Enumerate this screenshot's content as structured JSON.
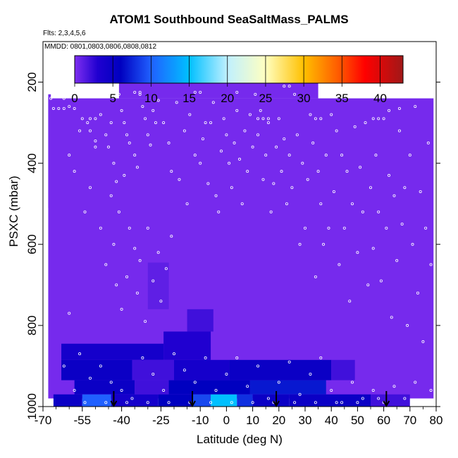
{
  "chart_data": {
    "type": "heatmap",
    "title": "ATOM1 Southbound SeaSaltMass_PALMS",
    "flights_label": "Flts: 2,3,4,5,6",
    "dates_label": "MMDD: 0801,0803,0806,0808,0812",
    "xlabel": "Latitude (deg N)",
    "ylabel": "PSXC (mbar)",
    "xlim": [
      -70,
      80
    ],
    "ylim": [
      1000,
      100
    ],
    "x_ticks": [
      -70,
      -55,
      -40,
      -25,
      -10,
      0,
      10,
      20,
      30,
      40,
      50,
      60,
      70,
      80
    ],
    "y_ticks": [
      200,
      400,
      600,
      800,
      1000
    ],
    "colorbar": {
      "range": [
        0,
        43
      ],
      "ticks": [
        0,
        5,
        10,
        15,
        20,
        25,
        30,
        35,
        40
      ],
      "colors": [
        {
          "v": 0,
          "c": "#7f2ff0"
        },
        {
          "v": 3,
          "c": "#2000d0"
        },
        {
          "v": 6,
          "c": "#0000c0"
        },
        {
          "v": 10,
          "c": "#2060ff"
        },
        {
          "v": 15,
          "c": "#00c0ff"
        },
        {
          "v": 20,
          "c": "#c0f0ff"
        },
        {
          "v": 25,
          "c": "#ffffc0"
        },
        {
          "v": 30,
          "c": "#ffc000"
        },
        {
          "v": 35,
          "c": "#ff5000"
        },
        {
          "v": 38,
          "c": "#ff0000"
        },
        {
          "v": 43,
          "c": "#a01818"
        }
      ]
    },
    "background_value": 0.3,
    "coverage": [
      {
        "x0": -68,
        "x1": 79,
        "p0": 240,
        "p1": 980
      },
      {
        "x0": -41,
        "x1": 35,
        "p0": 183,
        "p1": 240
      },
      {
        "x0": -68,
        "x1": -67,
        "p0": 230,
        "p1": 510
      }
    ],
    "regions": [
      {
        "x0": -63,
        "x1": -24,
        "p0": 845,
        "p1": 885,
        "v": 4
      },
      {
        "x0": -24,
        "x1": -6,
        "p0": 815,
        "p1": 885,
        "v": 3
      },
      {
        "x0": -63,
        "x1": -36,
        "p0": 885,
        "p1": 935,
        "v": 5
      },
      {
        "x0": -36,
        "x1": -20,
        "p0": 885,
        "p1": 935,
        "v": 2
      },
      {
        "x0": -20,
        "x1": 1,
        "p0": 885,
        "p1": 935,
        "v": 4
      },
      {
        "x0": 1,
        "x1": 40,
        "p0": 885,
        "p1": 935,
        "v": 5
      },
      {
        "x0": 40,
        "x1": 49,
        "p0": 885,
        "p1": 935,
        "v": 2
      },
      {
        "x0": -58,
        "x1": -35,
        "p0": 935,
        "p1": 970,
        "v": 5
      },
      {
        "x0": -35,
        "x1": -22,
        "p0": 935,
        "p1": 970,
        "v": 2
      },
      {
        "x0": -22,
        "x1": 9,
        "p0": 935,
        "p1": 970,
        "v": 6
      },
      {
        "x0": 9,
        "x1": 38,
        "p0": 935,
        "p1": 970,
        "v": 7
      },
      {
        "x0": -66,
        "x1": -55,
        "p0": 970,
        "p1": 1000,
        "v": 5
      },
      {
        "x0": -55,
        "x1": -44,
        "p0": 970,
        "p1": 1000,
        "v": 10
      },
      {
        "x0": -44,
        "x1": -26,
        "p0": 970,
        "p1": 1000,
        "v": 4
      },
      {
        "x0": -26,
        "x1": -13,
        "p0": 970,
        "p1": 1000,
        "v": 6
      },
      {
        "x0": -13,
        "x1": -6,
        "p0": 970,
        "p1": 1000,
        "v": 9
      },
      {
        "x0": -6,
        "x1": 4,
        "p0": 970,
        "p1": 1000,
        "v": 15
      },
      {
        "x0": 4,
        "x1": 10,
        "p0": 970,
        "p1": 1000,
        "v": 8
      },
      {
        "x0": 10,
        "x1": 24,
        "p0": 970,
        "p1": 1000,
        "v": 5
      },
      {
        "x0": 24,
        "x1": 55,
        "p0": 970,
        "p1": 1000,
        "v": 5
      },
      {
        "x0": 55,
        "x1": 70,
        "p0": 970,
        "p1": 1000,
        "v": 2
      },
      {
        "x0": -30,
        "x1": -22,
        "p0": 645,
        "p1": 760,
        "v": 1
      },
      {
        "x0": -15,
        "x1": -5,
        "p0": 760,
        "p1": 815,
        "v": 2
      }
    ],
    "arrows": [
      -43,
      -13,
      19,
      61
    ],
    "points": [
      [
        -67,
        240
      ],
      [
        -65,
        230
      ],
      [
        -62,
        240
      ],
      [
        -60,
        260
      ],
      [
        -58,
        265
      ],
      [
        -55,
        290
      ],
      [
        -53,
        300
      ],
      [
        -52,
        320
      ],
      [
        -50,
        345
      ],
      [
        -48,
        280
      ],
      [
        -46,
        330
      ],
      [
        -45,
        360
      ],
      [
        -44,
        300
      ],
      [
        -43,
        400
      ],
      [
        -42,
        445
      ],
      [
        -41,
        230
      ],
      [
        -40,
        270
      ],
      [
        -39,
        300
      ],
      [
        -38,
        330
      ],
      [
        -37,
        350
      ],
      [
        -35,
        380
      ],
      [
        -34,
        410
      ],
      [
        -33,
        230
      ],
      [
        -32,
        260
      ],
      [
        -31,
        290
      ],
      [
        -30,
        330
      ],
      [
        -29,
        355
      ],
      [
        -28,
        270
      ],
      [
        -27,
        300
      ],
      [
        -26,
        245
      ],
      [
        -24,
        300
      ],
      [
        -22,
        350
      ],
      [
        -21,
        420
      ],
      [
        -19,
        250
      ],
      [
        -18,
        440
      ],
      [
        -16,
        320
      ],
      [
        -15,
        500
      ],
      [
        -14,
        280
      ],
      [
        -12,
        380
      ],
      [
        -10,
        400
      ],
      [
        -9,
        340
      ],
      [
        -8,
        300
      ],
      [
        -7,
        450
      ],
      [
        -6,
        300
      ],
      [
        -5,
        250
      ],
      [
        -4,
        480
      ],
      [
        -3,
        520
      ],
      [
        -2,
        370
      ],
      [
        -1,
        290
      ],
      [
        0,
        330
      ],
      [
        1,
        400
      ],
      [
        2,
        460
      ],
      [
        3,
        350
      ],
      [
        4,
        270
      ],
      [
        5,
        390
      ],
      [
        6,
        500
      ],
      [
        7,
        320
      ],
      [
        8,
        420
      ],
      [
        9,
        280
      ],
      [
        10,
        360
      ],
      [
        11,
        230
      ],
      [
        12,
        330
      ],
      [
        13,
        270
      ],
      [
        14,
        440
      ],
      [
        15,
        380
      ],
      [
        16,
        300
      ],
      [
        17,
        520
      ],
      [
        18,
        450
      ],
      [
        19,
        360
      ],
      [
        20,
        290
      ],
      [
        21,
        420
      ],
      [
        22,
        340
      ],
      [
        23,
        500
      ],
      [
        24,
        380
      ],
      [
        25,
        460
      ],
      [
        26,
        230
      ],
      [
        27,
        330
      ],
      [
        28,
        600
      ],
      [
        29,
        400
      ],
      [
        30,
        560
      ],
      [
        31,
        440
      ],
      [
        32,
        280
      ],
      [
        33,
        350
      ],
      [
        34,
        680
      ],
      [
        35,
        420
      ],
      [
        36,
        500
      ],
      [
        37,
        600
      ],
      [
        38,
        380
      ],
      [
        39,
        560
      ],
      [
        40,
        280
      ],
      [
        41,
        470
      ],
      [
        42,
        320
      ],
      [
        43,
        650
      ],
      [
        44,
        380
      ],
      [
        45,
        560
      ],
      [
        46,
        420
      ],
      [
        47,
        740
      ],
      [
        48,
        500
      ],
      [
        49,
        310
      ],
      [
        50,
        620
      ],
      [
        51,
        410
      ],
      [
        52,
        520
      ],
      [
        53,
        300
      ],
      [
        54,
        700
      ],
      [
        55,
        460
      ],
      [
        56,
        610
      ],
      [
        57,
        380
      ],
      [
        58,
        520
      ],
      [
        59,
        690
      ],
      [
        60,
        290
      ],
      [
        61,
        560
      ],
      [
        62,
        430
      ],
      [
        63,
        780
      ],
      [
        64,
        480
      ],
      [
        65,
        640
      ],
      [
        66,
        320
      ],
      [
        67,
        550
      ],
      [
        68,
        460
      ],
      [
        69,
        800
      ],
      [
        70,
        380
      ],
      [
        71,
        600
      ],
      [
        72,
        260
      ],
      [
        73,
        720
      ],
      [
        74,
        470
      ],
      [
        75,
        840
      ],
      [
        76,
        560
      ],
      [
        77,
        350
      ],
      [
        78,
        650
      ],
      [
        -60,
        380
      ],
      [
        -58,
        420
      ],
      [
        -56,
        320
      ],
      [
        -54,
        520
      ],
      [
        -52,
        460
      ],
      [
        -50,
        360
      ],
      [
        -48,
        560
      ],
      [
        -46,
        650
      ],
      [
        -44,
        480
      ],
      [
        -43,
        600
      ],
      [
        -42,
        700
      ],
      [
        -41,
        520
      ],
      [
        -40,
        760
      ],
      [
        -39,
        430
      ],
      [
        -38,
        680
      ],
      [
        -37,
        560
      ],
      [
        -35,
        610
      ],
      [
        -34,
        720
      ],
      [
        -33,
        640
      ],
      [
        -31,
        790
      ],
      [
        -30,
        560
      ],
      [
        -28,
        690
      ],
      [
        -26,
        620
      ],
      [
        -25,
        740
      ],
      [
        -23,
        660
      ],
      [
        -21,
        580
      ],
      [
        -60,
        770
      ],
      [
        -56,
        870
      ],
      [
        -52,
        930
      ],
      [
        -48,
        900
      ],
      [
        -44,
        940
      ],
      [
        -40,
        960
      ],
      [
        -36,
        980
      ],
      [
        -32,
        880
      ],
      [
        -28,
        920
      ],
      [
        -24,
        960
      ],
      [
        -20,
        870
      ],
      [
        -16,
        910
      ],
      [
        -12,
        940
      ],
      [
        -8,
        880
      ],
      [
        -4,
        960
      ],
      [
        0,
        920
      ],
      [
        4,
        880
      ],
      [
        8,
        950
      ],
      [
        12,
        900
      ],
      [
        16,
        980
      ],
      [
        20,
        940
      ],
      [
        24,
        890
      ],
      [
        28,
        970
      ],
      [
        32,
        920
      ],
      [
        36,
        880
      ],
      [
        40,
        960
      ],
      [
        44,
        990
      ],
      [
        48,
        940
      ],
      [
        52,
        980
      ],
      [
        56,
        960
      ],
      [
        60,
        990
      ],
      [
        64,
        950
      ],
      [
        68,
        980
      ],
      [
        72,
        940
      ],
      [
        76,
        990
      ],
      [
        78,
        960
      ],
      [
        -66,
        265
      ],
      [
        -64,
        265
      ],
      [
        -62,
        265
      ],
      [
        -52,
        290
      ],
      [
        -50,
        290
      ],
      [
        -35,
        225
      ],
      [
        -33,
        225
      ],
      [
        -12,
        225
      ],
      [
        -10,
        225
      ],
      [
        4,
        225
      ],
      [
        12,
        290
      ],
      [
        14,
        290
      ],
      [
        16,
        290
      ],
      [
        22,
        210
      ],
      [
        24,
        210
      ],
      [
        34,
        290
      ],
      [
        36,
        290
      ],
      [
        56,
        290
      ],
      [
        58,
        290
      ],
      [
        62,
        270
      ],
      [
        66,
        265
      ],
      [
        60,
        230
      ],
      [
        58,
        230
      ],
      [
        -62,
        900
      ],
      [
        -58,
        960
      ],
      [
        -54,
        990
      ],
      [
        -46,
        990
      ],
      [
        -38,
        990
      ],
      [
        -30,
        990
      ],
      [
        -22,
        990
      ],
      [
        -14,
        990
      ],
      [
        -6,
        990
      ],
      [
        2,
        990
      ],
      [
        10,
        990
      ],
      [
        18,
        990
      ],
      [
        26,
        990
      ],
      [
        34,
        990
      ],
      [
        42,
        990
      ],
      [
        50,
        990
      ],
      [
        58,
        980
      ]
    ]
  }
}
